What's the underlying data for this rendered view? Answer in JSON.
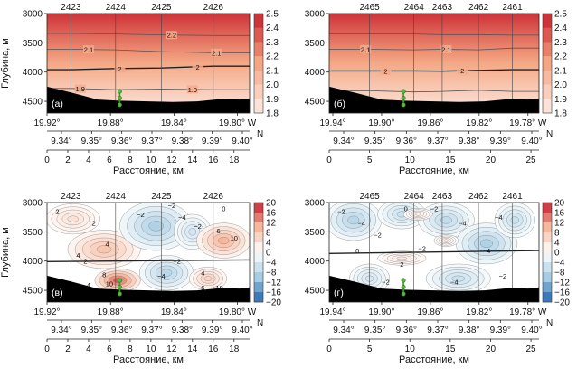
{
  "chart_data": [
    {
      "type": "contour",
      "panel_label": "(а)",
      "ylabel": "Глубина, м",
      "yticks": [
        3000,
        3500,
        4000,
        4500
      ],
      "ylim": [
        3000,
        4700
      ],
      "stations": [
        {
          "name": "2423",
          "km": 2.3
        },
        {
          "name": "2424",
          "km": 6.6
        },
        {
          "name": "2425",
          "km": 11.0
        },
        {
          "name": "2426",
          "km": 16.0
        }
      ],
      "station_depth_km": 7.0,
      "colorbar": {
        "scheme": "reds",
        "ticks": [
          "2.5",
          "2.4",
          "2.3",
          "2.2",
          "2.1",
          "2.0",
          "1.9",
          "1.8"
        ],
        "min": 1.8,
        "max": 2.5
      },
      "field": {
        "top": 2.45,
        "bottom": 1.82
      },
      "contours": [
        {
          "label": "2.2",
          "depths": [
            3340,
            3350,
            3365,
            3375
          ],
          "bold": false
        },
        {
          "label": "2.1",
          "depths": [
            3610,
            3620,
            3650,
            3670
          ],
          "bold": false
        },
        {
          "label": "2",
          "depths": [
            3960,
            3940,
            3930,
            3900
          ],
          "bold": true
        },
        {
          "label": "1.9",
          "depths": [
            4280,
            4300,
            4290,
            4300
          ],
          "bold": false
        }
      ],
      "contour_label_pos": [
        {
          "label": "2.2",
          "km": 12.0
        },
        {
          "label": "2.1",
          "km": 4.0
        },
        {
          "label": "2.1",
          "km": 16.3
        },
        {
          "label": "2",
          "km": 7.0
        },
        {
          "label": "2",
          "km": 14.5
        },
        {
          "label": "1.9",
          "km": 3.2
        },
        {
          "label": "1.9",
          "km": 14.0
        }
      ],
      "lon_ticks": [
        "19.92°",
        "19.88°",
        "19.84°",
        "19.80° W"
      ],
      "lat_ticks": [
        "9.34°",
        "9.35°",
        "9.36°",
        "9.37°",
        "9.38°",
        "9.39°",
        "9.40°"
      ],
      "lat_suffix": "N",
      "dist_ticks": [
        "0",
        "2",
        "4",
        "6",
        "8",
        "10",
        "12",
        "14",
        "16",
        "18"
      ],
      "dist_label": "Расстояние, км",
      "xmax_km": 19.5
    },
    {
      "type": "contour",
      "panel_label": "(б)",
      "ylabel": "",
      "yticks": [
        3000,
        3500,
        4000,
        4500
      ],
      "ylim": [
        3000,
        4700
      ],
      "stations": [
        {
          "name": "2465",
          "km": 5.0
        },
        {
          "name": "2464",
          "km": 10.5
        },
        {
          "name": "2463",
          "km": 14.0
        },
        {
          "name": "2462",
          "km": 18.5
        },
        {
          "name": "2461",
          "km": 22.7
        }
      ],
      "station_depth_km": 9.2,
      "colorbar": {
        "scheme": "reds",
        "ticks": [
          "2.5",
          "2.4",
          "2.3",
          "2.2",
          "2.1",
          "2.0",
          "1.9",
          "1.8"
        ],
        "min": 1.8,
        "max": 2.5
      },
      "field": {
        "top": 2.45,
        "bottom": 1.82
      },
      "contours": [
        {
          "label": "2.2",
          "depths": [
            3350,
            3350,
            3360,
            3360,
            3370
          ],
          "bold": false
        },
        {
          "label": "2.1",
          "depths": [
            3610,
            3620,
            3610,
            3620,
            3590
          ],
          "bold": false
        },
        {
          "label": "2",
          "depths": [
            3980,
            3980,
            3985,
            3970,
            3960
          ],
          "bold": true
        },
        {
          "label": "1.9",
          "depths": [
            4320,
            4340,
            4330,
            4310,
            4330
          ],
          "bold": false
        }
      ],
      "contour_label_pos": [
        {
          "label": "2.1",
          "km": 4.5
        },
        {
          "label": "2.1",
          "km": 14.5
        },
        {
          "label": "2",
          "km": 7.0
        },
        {
          "label": "2",
          "km": 16.5
        }
      ],
      "lon_ticks": [
        "19.94°",
        "19.90°",
        "19.86°",
        "19.82°",
        "19.78° W"
      ],
      "lat_ticks": [
        "9.34°",
        "9.35°",
        "9.36°",
        "9.37°",
        "9.38°",
        "9.39°",
        "9.40°"
      ],
      "lat_suffix": "N",
      "dist_ticks": [
        "0",
        "5",
        "10",
        "15",
        "20",
        "25"
      ],
      "dist_label": "Расстояние, км",
      "xmax_km": 26.0
    },
    {
      "type": "contour",
      "panel_label": "(в)",
      "ylabel": "Глубина, м",
      "yticks": [
        3000,
        3500,
        4000,
        4500
      ],
      "ylim": [
        3000,
        4700
      ],
      "stations": [
        {
          "name": "2423",
          "km": 2.3
        },
        {
          "name": "2424",
          "km": 6.6
        },
        {
          "name": "2425",
          "km": 11.0
        },
        {
          "name": "2426",
          "km": 16.0
        }
      ],
      "station_depth_km": 7.0,
      "colorbar": {
        "scheme": "diverging",
        "ticks": [
          "20",
          "16",
          "12",
          "8",
          "4",
          "0",
          "−4",
          "−8",
          "−12",
          "−16",
          "−20"
        ],
        "min": -20,
        "max": 20
      },
      "blobs": [
        {
          "km": 5.5,
          "depth": 3800,
          "rx": 3.5,
          "ry": 330,
          "v": 8
        },
        {
          "km": 6.8,
          "depth": 4330,
          "rx": 2.2,
          "ry": 200,
          "v": 16
        },
        {
          "km": 2.5,
          "depth": 3280,
          "rx": 2.6,
          "ry": 260,
          "v": 4
        },
        {
          "km": 10.5,
          "depth": 3400,
          "rx": 3.5,
          "ry": 420,
          "v": -9
        },
        {
          "km": 11.5,
          "depth": 4200,
          "rx": 2.6,
          "ry": 300,
          "v": -8
        },
        {
          "km": 14.0,
          "depth": 3500,
          "rx": 1.8,
          "ry": 300,
          "v": -5
        },
        {
          "km": 17.0,
          "depth": 3650,
          "rx": 2.6,
          "ry": 300,
          "v": 10
        },
        {
          "km": 15.5,
          "depth": 4300,
          "rx": 1.8,
          "ry": 200,
          "v": 6
        }
      ],
      "mean_line": [
        [
          0,
          4010
        ],
        [
          19.5,
          3980
        ]
      ],
      "contour_marks": [
        {
          "label": "2",
          "km": 1.0,
          "depth": 3150
        },
        {
          "label": "2",
          "km": 4.5,
          "depth": 3350
        },
        {
          "label": "4",
          "km": 5.8,
          "depth": 3700
        },
        {
          "label": "4",
          "km": 3.0,
          "depth": 3900
        },
        {
          "label": "2",
          "km": 3.7,
          "depth": 4000
        },
        {
          "label": "−2",
          "km": 9.0,
          "depth": 3200
        },
        {
          "label": "−2",
          "km": 12.0,
          "depth": 3050
        },
        {
          "label": "−4",
          "km": 13.0,
          "depth": 3250
        },
        {
          "label": "−2",
          "km": 14.5,
          "depth": 3400
        },
        {
          "label": "−2",
          "km": 12.5,
          "depth": 4000
        },
        {
          "label": "−4",
          "km": 11.0,
          "depth": 4250
        },
        {
          "label": "8",
          "km": 5.5,
          "depth": 4230
        },
        {
          "label": "10",
          "km": 6.0,
          "depth": 4380
        },
        {
          "label": "4",
          "km": 4.0,
          "depth": 4410
        },
        {
          "label": "6",
          "km": 16.5,
          "depth": 3480
        },
        {
          "label": "10",
          "km": 18.0,
          "depth": 3600
        },
        {
          "label": "4",
          "km": 15.0,
          "depth": 4200
        },
        {
          "label": "6",
          "km": 15.0,
          "depth": 4450
        },
        {
          "label": "10",
          "km": 16.6,
          "depth": 4450
        },
        {
          "label": "0",
          "km": 17.0,
          "depth": 3100
        }
      ],
      "lon_ticks": [
        "19.92°",
        "19.88°",
        "19.84°",
        "19.80° W"
      ],
      "lat_ticks": [
        "9.34°",
        "9.35°",
        "9.36°",
        "9.37°",
        "9.38°",
        "9.39°",
        "9.40°"
      ],
      "lat_suffix": "N",
      "dist_ticks": [
        "0",
        "2",
        "4",
        "6",
        "8",
        "10",
        "12",
        "14",
        "16",
        "18"
      ],
      "dist_label": "Расстояние, км",
      "xmax_km": 19.5
    },
    {
      "type": "contour",
      "panel_label": "(г)",
      "ylabel": "",
      "yticks": [
        3000,
        3500,
        4000,
        4500
      ],
      "ylim": [
        3000,
        4700
      ],
      "stations": [
        {
          "name": "2465",
          "km": 5.0
        },
        {
          "name": "2464",
          "km": 10.5
        },
        {
          "name": "2463",
          "km": 14.0
        },
        {
          "name": "2462",
          "km": 18.5
        },
        {
          "name": "2461",
          "km": 22.7
        }
      ],
      "station_depth_km": 9.2,
      "colorbar": {
        "scheme": "diverging",
        "ticks": [
          "20",
          "16",
          "12",
          "8",
          "4",
          "0",
          "−4",
          "−8",
          "−12",
          "−16",
          "−20"
        ],
        "min": -20,
        "max": 20
      },
      "blobs": [
        {
          "km": 3.0,
          "depth": 3300,
          "rx": 3.5,
          "ry": 350,
          "v": -8
        },
        {
          "km": 9.0,
          "depth": 3200,
          "rx": 3.0,
          "ry": 250,
          "v": -6
        },
        {
          "km": 14.5,
          "depth": 3300,
          "rx": 3.5,
          "ry": 300,
          "v": -7
        },
        {
          "km": 19.5,
          "depth": 3700,
          "rx": 3.8,
          "ry": 350,
          "v": -9
        },
        {
          "km": 23.0,
          "depth": 3300,
          "rx": 2.5,
          "ry": 300,
          "v": -6
        },
        {
          "km": 5.0,
          "depth": 4300,
          "rx": 2.5,
          "ry": 250,
          "v": -5
        },
        {
          "km": 16.0,
          "depth": 4300,
          "rx": 4.0,
          "ry": 250,
          "v": -6
        },
        {
          "km": 11.0,
          "depth": 3200,
          "rx": 1.8,
          "ry": 100,
          "v": 2
        },
        {
          "km": 9.0,
          "depth": 3950,
          "rx": 3.0,
          "ry": 120,
          "v": 3
        },
        {
          "km": 14.5,
          "depth": 3650,
          "rx": 1.5,
          "ry": 100,
          "v": 2
        }
      ],
      "mean_line": [
        [
          0,
          3870
        ],
        [
          26,
          3820
        ]
      ],
      "contour_marks": [
        {
          "label": "−2",
          "km": 1.5,
          "depth": 3150
        },
        {
          "label": "−4",
          "km": 4.0,
          "depth": 3350
        },
        {
          "label": "−2",
          "km": 6.0,
          "depth": 3550
        },
        {
          "label": "0",
          "km": 9.5,
          "depth": 3100
        },
        {
          "label": "−2",
          "km": 13.0,
          "depth": 3100
        },
        {
          "label": "−4",
          "km": 16.5,
          "depth": 3350
        },
        {
          "label": "−4",
          "km": 21.0,
          "depth": 3250
        },
        {
          "label": "0",
          "km": 3.5,
          "depth": 3820
        },
        {
          "label": "−2",
          "km": 11.5,
          "depth": 3780
        },
        {
          "label": "2",
          "km": 9.0,
          "depth": 4050
        },
        {
          "label": "−4",
          "km": 19.5,
          "depth": 3820
        },
        {
          "label": "−2",
          "km": 7.0,
          "depth": 4350
        },
        {
          "label": "−4",
          "km": 15.5,
          "depth": 4350
        },
        {
          "label": "−2",
          "km": 21.5,
          "depth": 4250
        },
        {
          "label": "4",
          "km": 2.5,
          "depth": 4420
        }
      ],
      "lon_ticks": [
        "19.94°",
        "19.90°",
        "19.86°",
        "19.82°",
        "19.78° W"
      ],
      "lat_ticks": [
        "9.34°",
        "9.35°",
        "9.36°",
        "9.37°",
        "9.38°",
        "9.39°",
        "9.40°"
      ],
      "lat_suffix": "N",
      "dist_ticks": [
        "0",
        "5",
        "10",
        "15",
        "20",
        "25"
      ],
      "dist_label": "Расстояние, км",
      "xmax_km": 26.0
    }
  ]
}
